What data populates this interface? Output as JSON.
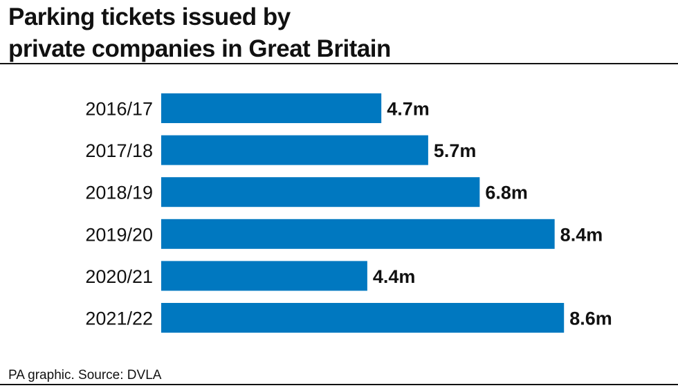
{
  "chart_data": {
    "type": "bar",
    "orientation": "horizontal",
    "title": "Parking tickets issued by private companies in Great Britain",
    "title_lines": [
      "Parking tickets issued by",
      "private companies in Great Britain"
    ],
    "categories": [
      "2016/17",
      "2017/18",
      "2018/19",
      "2019/20",
      "2020/21",
      "2021/22"
    ],
    "values": [
      4.7,
      5.7,
      6.8,
      8.4,
      4.4,
      8.6
    ],
    "data_labels": [
      "4.7m",
      "5.7m",
      "6.8m",
      "8.4m",
      "4.4m",
      "8.6m"
    ],
    "unit": "m",
    "xlabel": "",
    "ylabel": "",
    "grid": false,
    "legend": "none",
    "bar_color": "#0078c0"
  },
  "footer": {
    "source": "PA graphic. Source: DVLA"
  }
}
